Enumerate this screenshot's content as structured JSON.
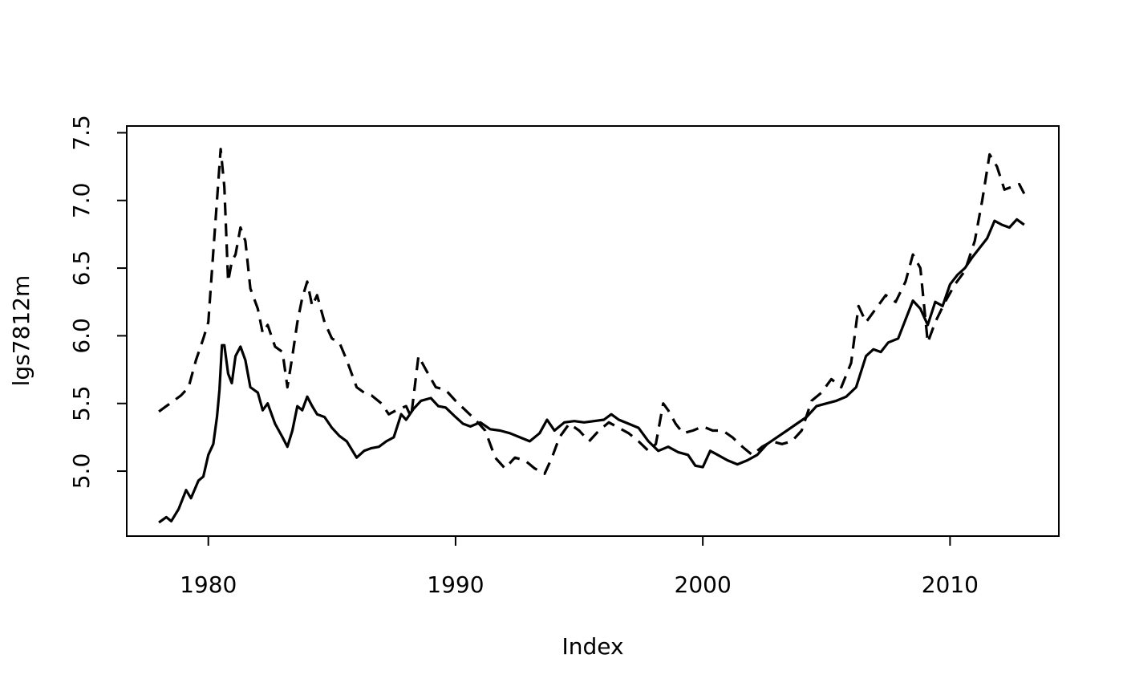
{
  "chart_data": {
    "type": "line",
    "title": "",
    "xlabel": "Index",
    "ylabel": "lgs7812m",
    "xlim": [
      1976.7,
      2014.4
    ],
    "ylim": [
      4.52,
      7.55
    ],
    "xticks": [
      1980,
      1990,
      2000,
      2010
    ],
    "xtick_labels": [
      "1980",
      "1990",
      "2000",
      "2010"
    ],
    "yticks": [
      5.0,
      5.5,
      6.0,
      6.5,
      7.0,
      7.5
    ],
    "ytick_labels": [
      "5.0",
      "5.5",
      "6.0",
      "6.5",
      "7.0",
      "7.5"
    ],
    "grid": false,
    "legend": "none",
    "color": "#000000",
    "series": [
      {
        "style": "solid",
        "points": [
          [
            1978.0,
            4.62
          ],
          [
            1978.3,
            4.66
          ],
          [
            1978.5,
            4.63
          ],
          [
            1978.8,
            4.72
          ],
          [
            1979.1,
            4.86
          ],
          [
            1979.3,
            4.8
          ],
          [
            1979.6,
            4.93
          ],
          [
            1979.8,
            4.96
          ],
          [
            1980.0,
            5.12
          ],
          [
            1980.2,
            5.2
          ],
          [
            1980.35,
            5.4
          ],
          [
            1980.45,
            5.6
          ],
          [
            1980.55,
            5.93
          ],
          [
            1980.65,
            5.93
          ],
          [
            1980.8,
            5.72
          ],
          [
            1980.95,
            5.65
          ],
          [
            1981.1,
            5.85
          ],
          [
            1981.3,
            5.92
          ],
          [
            1981.5,
            5.82
          ],
          [
            1981.7,
            5.62
          ],
          [
            1982.0,
            5.58
          ],
          [
            1982.2,
            5.45
          ],
          [
            1982.4,
            5.5
          ],
          [
            1982.7,
            5.35
          ],
          [
            1983.0,
            5.25
          ],
          [
            1983.2,
            5.18
          ],
          [
            1983.4,
            5.3
          ],
          [
            1983.6,
            5.48
          ],
          [
            1983.8,
            5.45
          ],
          [
            1984.0,
            5.55
          ],
          [
            1984.2,
            5.48
          ],
          [
            1984.4,
            5.42
          ],
          [
            1984.7,
            5.4
          ],
          [
            1985.0,
            5.32
          ],
          [
            1985.3,
            5.26
          ],
          [
            1985.6,
            5.22
          ],
          [
            1986.0,
            5.1
          ],
          [
            1986.3,
            5.15
          ],
          [
            1986.6,
            5.17
          ],
          [
            1986.9,
            5.18
          ],
          [
            1987.2,
            5.22
          ],
          [
            1987.5,
            5.25
          ],
          [
            1987.8,
            5.42
          ],
          [
            1988.0,
            5.38
          ],
          [
            1988.3,
            5.46
          ],
          [
            1988.6,
            5.52
          ],
          [
            1989.0,
            5.54
          ],
          [
            1989.3,
            5.48
          ],
          [
            1989.6,
            5.47
          ],
          [
            1990.0,
            5.4
          ],
          [
            1990.3,
            5.35
          ],
          [
            1990.6,
            5.33
          ],
          [
            1991.0,
            5.36
          ],
          [
            1991.4,
            5.31
          ],
          [
            1991.8,
            5.3
          ],
          [
            1992.2,
            5.28
          ],
          [
            1992.6,
            5.25
          ],
          [
            1993.0,
            5.22
          ],
          [
            1993.4,
            5.28
          ],
          [
            1993.7,
            5.38
          ],
          [
            1994.0,
            5.3
          ],
          [
            1994.4,
            5.36
          ],
          [
            1994.8,
            5.37
          ],
          [
            1995.2,
            5.36
          ],
          [
            1995.6,
            5.37
          ],
          [
            1996.0,
            5.38
          ],
          [
            1996.3,
            5.42
          ],
          [
            1996.6,
            5.38
          ],
          [
            1997.0,
            5.35
          ],
          [
            1997.4,
            5.32
          ],
          [
            1997.8,
            5.22
          ],
          [
            1998.2,
            5.15
          ],
          [
            1998.6,
            5.18
          ],
          [
            1999.0,
            5.14
          ],
          [
            1999.4,
            5.12
          ],
          [
            1999.7,
            5.04
          ],
          [
            2000.0,
            5.03
          ],
          [
            2000.3,
            5.15
          ],
          [
            2000.6,
            5.12
          ],
          [
            2001.0,
            5.08
          ],
          [
            2001.4,
            5.05
          ],
          [
            2001.8,
            5.08
          ],
          [
            2002.2,
            5.12
          ],
          [
            2002.6,
            5.2
          ],
          [
            2003.0,
            5.25
          ],
          [
            2003.4,
            5.3
          ],
          [
            2003.8,
            5.35
          ],
          [
            2004.2,
            5.4
          ],
          [
            2004.6,
            5.48
          ],
          [
            2005.0,
            5.5
          ],
          [
            2005.4,
            5.52
          ],
          [
            2005.8,
            5.55
          ],
          [
            2006.2,
            5.62
          ],
          [
            2006.6,
            5.85
          ],
          [
            2006.9,
            5.9
          ],
          [
            2007.2,
            5.88
          ],
          [
            2007.5,
            5.95
          ],
          [
            2007.9,
            5.98
          ],
          [
            2008.2,
            6.12
          ],
          [
            2008.5,
            6.26
          ],
          [
            2008.8,
            6.2
          ],
          [
            2009.1,
            6.08
          ],
          [
            2009.4,
            6.25
          ],
          [
            2009.7,
            6.22
          ],
          [
            2010.0,
            6.38
          ],
          [
            2010.3,
            6.45
          ],
          [
            2010.6,
            6.5
          ],
          [
            2010.9,
            6.58
          ],
          [
            2011.2,
            6.65
          ],
          [
            2011.5,
            6.72
          ],
          [
            2011.8,
            6.85
          ],
          [
            2012.1,
            6.82
          ],
          [
            2012.4,
            6.8
          ],
          [
            2012.7,
            6.86
          ],
          [
            2013.0,
            6.82
          ]
        ]
      },
      {
        "style": "dashed",
        "points": [
          [
            1978.0,
            5.44
          ],
          [
            1978.3,
            5.48
          ],
          [
            1978.6,
            5.52
          ],
          [
            1978.9,
            5.56
          ],
          [
            1979.2,
            5.62
          ],
          [
            1979.5,
            5.82
          ],
          [
            1979.8,
            5.98
          ],
          [
            1980.0,
            6.1
          ],
          [
            1980.2,
            6.62
          ],
          [
            1980.35,
            7.0
          ],
          [
            1980.5,
            7.38
          ],
          [
            1980.65,
            7.1
          ],
          [
            1980.8,
            6.4
          ],
          [
            1980.95,
            6.55
          ],
          [
            1981.1,
            6.6
          ],
          [
            1981.3,
            6.8
          ],
          [
            1981.5,
            6.7
          ],
          [
            1981.7,
            6.35
          ],
          [
            1982.0,
            6.2
          ],
          [
            1982.2,
            6.02
          ],
          [
            1982.4,
            6.08
          ],
          [
            1982.7,
            5.92
          ],
          [
            1983.0,
            5.88
          ],
          [
            1983.2,
            5.62
          ],
          [
            1983.4,
            5.85
          ],
          [
            1983.6,
            6.1
          ],
          [
            1983.8,
            6.28
          ],
          [
            1984.0,
            6.4
          ],
          [
            1984.2,
            6.22
          ],
          [
            1984.4,
            6.3
          ],
          [
            1984.7,
            6.1
          ],
          [
            1985.0,
            5.98
          ],
          [
            1985.3,
            5.95
          ],
          [
            1985.6,
            5.82
          ],
          [
            1986.0,
            5.62
          ],
          [
            1986.3,
            5.58
          ],
          [
            1986.6,
            5.56
          ],
          [
            1987.0,
            5.5
          ],
          [
            1987.3,
            5.42
          ],
          [
            1987.6,
            5.45
          ],
          [
            1988.0,
            5.48
          ],
          [
            1988.2,
            5.4
          ],
          [
            1988.5,
            5.85
          ],
          [
            1988.8,
            5.75
          ],
          [
            1989.2,
            5.62
          ],
          [
            1989.6,
            5.6
          ],
          [
            1990.0,
            5.52
          ],
          [
            1990.4,
            5.45
          ],
          [
            1990.8,
            5.38
          ],
          [
            1991.2,
            5.3
          ],
          [
            1991.6,
            5.1
          ],
          [
            1992.0,
            5.02
          ],
          [
            1992.4,
            5.1
          ],
          [
            1992.8,
            5.08
          ],
          [
            1993.2,
            5.02
          ],
          [
            1993.6,
            4.98
          ],
          [
            1993.9,
            5.1
          ],
          [
            1994.2,
            5.25
          ],
          [
            1994.6,
            5.35
          ],
          [
            1995.0,
            5.3
          ],
          [
            1995.4,
            5.22
          ],
          [
            1995.8,
            5.3
          ],
          [
            1996.2,
            5.36
          ],
          [
            1996.6,
            5.32
          ],
          [
            1997.0,
            5.28
          ],
          [
            1997.4,
            5.22
          ],
          [
            1997.8,
            5.15
          ],
          [
            1998.1,
            5.2
          ],
          [
            1998.4,
            5.5
          ],
          [
            1998.6,
            5.45
          ],
          [
            1998.9,
            5.35
          ],
          [
            1999.2,
            5.28
          ],
          [
            1999.6,
            5.3
          ],
          [
            2000.0,
            5.33
          ],
          [
            2000.4,
            5.3
          ],
          [
            2000.8,
            5.3
          ],
          [
            2001.2,
            5.25
          ],
          [
            2001.6,
            5.18
          ],
          [
            2002.0,
            5.12
          ],
          [
            2002.4,
            5.18
          ],
          [
            2002.8,
            5.22
          ],
          [
            2003.2,
            5.2
          ],
          [
            2003.6,
            5.22
          ],
          [
            2004.0,
            5.3
          ],
          [
            2004.4,
            5.52
          ],
          [
            2004.8,
            5.58
          ],
          [
            2005.2,
            5.68
          ],
          [
            2005.6,
            5.62
          ],
          [
            2006.0,
            5.8
          ],
          [
            2006.3,
            6.22
          ],
          [
            2006.6,
            6.1
          ],
          [
            2007.0,
            6.2
          ],
          [
            2007.4,
            6.3
          ],
          [
            2007.8,
            6.25
          ],
          [
            2008.2,
            6.4
          ],
          [
            2008.5,
            6.6
          ],
          [
            2008.8,
            6.5
          ],
          [
            2009.1,
            5.95
          ],
          [
            2009.4,
            6.1
          ],
          [
            2009.8,
            6.25
          ],
          [
            2010.2,
            6.38
          ],
          [
            2010.6,
            6.48
          ],
          [
            2011.0,
            6.7
          ],
          [
            2011.3,
            7.0
          ],
          [
            2011.6,
            7.34
          ],
          [
            2011.9,
            7.25
          ],
          [
            2012.2,
            7.08
          ],
          [
            2012.5,
            7.1
          ],
          [
            2012.8,
            7.12
          ],
          [
            2013.0,
            7.05
          ]
        ]
      }
    ]
  }
}
